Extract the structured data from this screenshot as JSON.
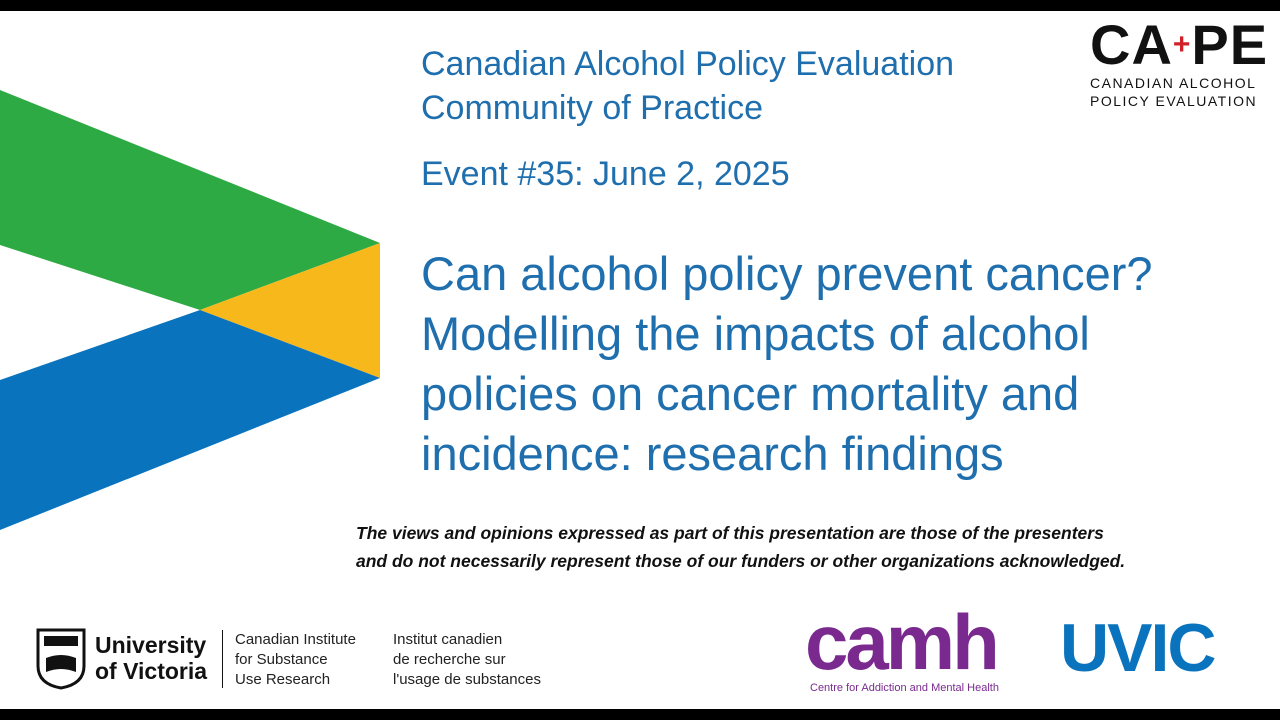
{
  "header": {
    "lines": [
      "Canadian Alcohol Policy Evaluation",
      "Community of Practice"
    ]
  },
  "event": "Event #35: June 2, 2025",
  "title": {
    "lines": [
      "Can alcohol policy prevent cancer?",
      "Modelling the impacts of alcohol",
      "policies on cancer mortality and",
      "incidence: research findings"
    ]
  },
  "disclaimer": {
    "lines": [
      "The views and opinions expressed as part of this presentation are those of the presenters",
      "and do not necessarily represent those of our funders or other organizations acknowledged."
    ]
  },
  "logo_cape": {
    "left": "CA",
    "right": "PE",
    "lines": [
      "CANADIAN ALCOHOL",
      "POLICY EVALUATION"
    ]
  },
  "logo_uvic": {
    "lines": [
      "University",
      "of Victoria"
    ]
  },
  "logo_cisur": {
    "english": [
      "Canadian Institute",
      "for Substance",
      "Use Research"
    ],
    "french": [
      "Institut canadien",
      "de recherche sur",
      "l'usage de substances"
    ]
  },
  "logo_camh": {
    "name": "camh",
    "subtitle": "Centre for Addiction and Mental Health"
  },
  "logo_uvic_mark": "UVIC"
}
